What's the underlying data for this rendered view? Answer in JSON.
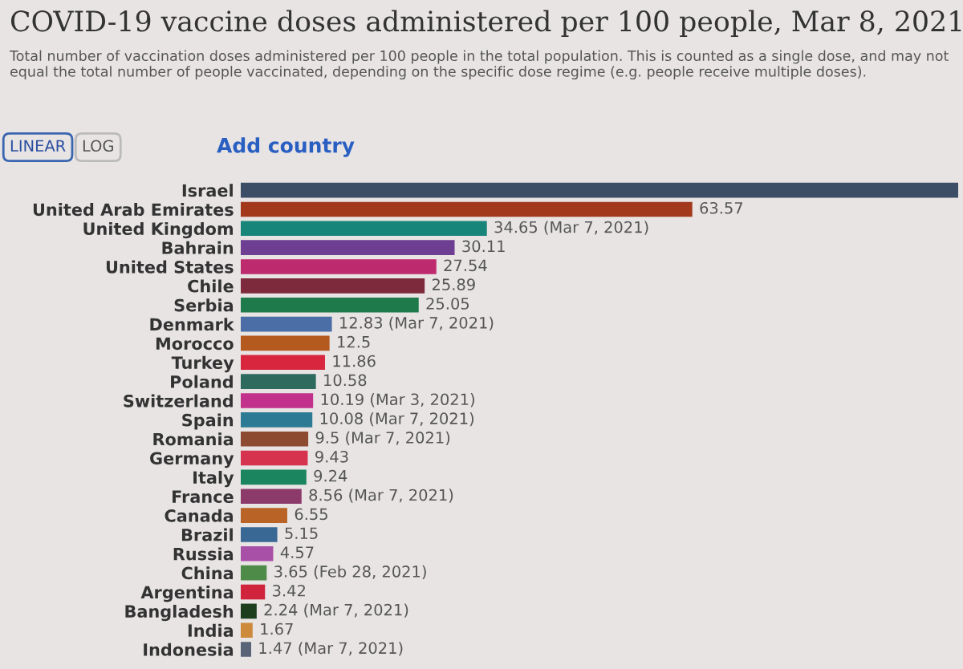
{
  "chart_data": {
    "type": "bar",
    "orientation": "horizontal",
    "title": "COVID-19 vaccine doses administered per 100 people, Mar 8, 2021",
    "subtitle": "Total number of vaccination doses administered per 100 people in the total population. This is counted as a single dose, and may not equal the total number of people vaccinated, depending on the specific dose regime (e.g. people receive multiple doses).",
    "annotations": [
      "LINEAR",
      "LOG",
      "Add country"
    ],
    "categories": [
      "Israel",
      "United Arab Emirates",
      "United Kingdom",
      "Bahrain",
      "United States",
      "Chile",
      "Serbia",
      "Denmark",
      "Morocco",
      "Turkey",
      "Poland",
      "Switzerland",
      "Spain",
      "Romania",
      "Germany",
      "Italy",
      "France",
      "Canada",
      "Brazil",
      "Russia",
      "China",
      "Argentina",
      "Bangladesh",
      "India",
      "Indonesia"
    ],
    "values": [
      101,
      63.57,
      34.65,
      30.11,
      27.54,
      25.89,
      25.05,
      12.83,
      12.5,
      11.86,
      10.58,
      10.19,
      10.08,
      9.5,
      9.43,
      9.24,
      8.56,
      6.55,
      5.15,
      4.57,
      3.65,
      3.42,
      2.24,
      1.67,
      1.47
    ],
    "value_labels": [
      null,
      "63.57",
      "34.65 (Mar 7, 2021)",
      "30.11",
      "27.54",
      "25.89",
      "25.05",
      "12.83 (Mar 7, 2021)",
      "12.5",
      "11.86",
      "10.58",
      "10.19 (Mar 3, 2021)",
      "10.08 (Mar 7, 2021)",
      "9.5 (Mar 7, 2021)",
      "9.43",
      "9.24",
      "8.56 (Mar 7, 2021)",
      "6.55",
      "5.15",
      "4.57",
      "3.65 (Feb 28, 2021)",
      "3.42",
      "2.24 (Mar 7, 2021)",
      "1.67",
      "1.47 (Mar 7, 2021)"
    ],
    "colors": [
      "#3c4e66",
      "#a2391c",
      "#18857a",
      "#6d3e91",
      "#be2a6e",
      "#7d2a3c",
      "#1e7a4a",
      "#4a6ea5",
      "#b45a1e",
      "#d7263d",
      "#2e6b5e",
      "#c2318c",
      "#2c7a94",
      "#8c4b30",
      "#d6334f",
      "#1b8560",
      "#8b3a6a",
      "#b96426",
      "#3a6894",
      "#a84fa8",
      "#4e8a48",
      "#d0243c",
      "#1d3f1d",
      "#cc8a3a",
      "#5a6478"
    ],
    "xlim": [
      0,
      101
    ]
  }
}
